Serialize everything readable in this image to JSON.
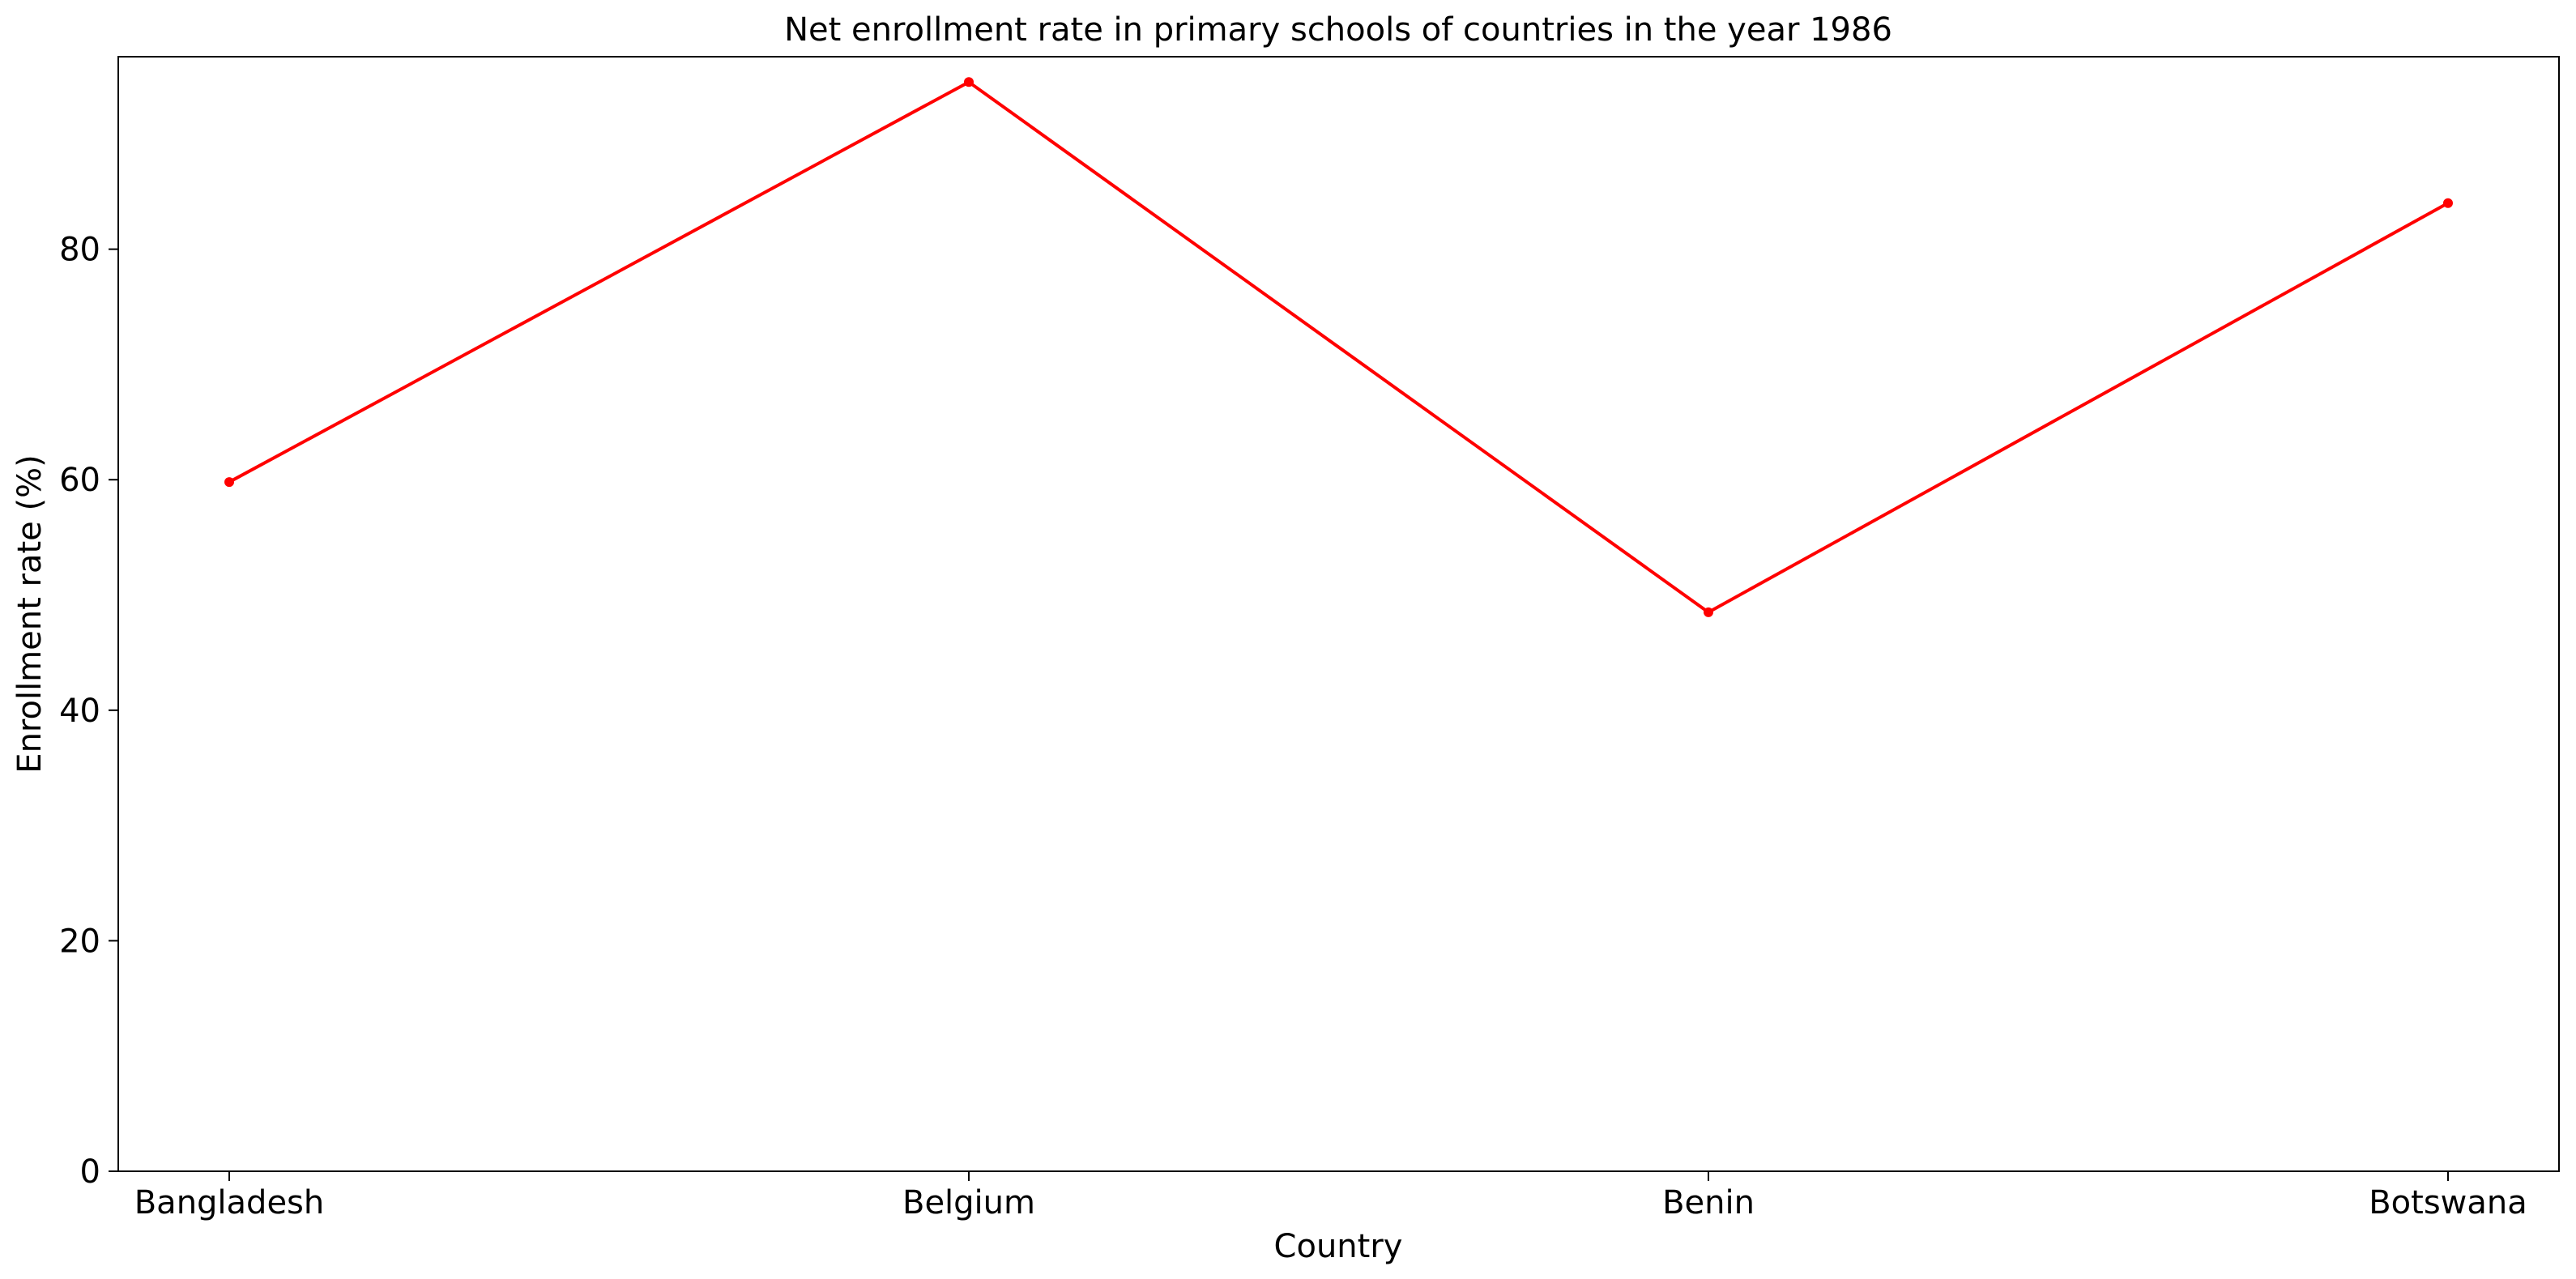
{
  "chart_data": {
    "type": "line",
    "title": "Net enrollment rate in primary schools of countries in the year 1986",
    "xlabel": "Country",
    "ylabel": "Enrollment rate (%)",
    "categories": [
      "Bangladesh",
      "Belgium",
      "Benin",
      "Botswana"
    ],
    "series": [
      {
        "values": [
          59.8,
          94.5,
          48.5,
          84.0
        ],
        "color": "#ff0000"
      }
    ],
    "ylim": [
      0,
      96.7
    ],
    "yticks": [
      0,
      20,
      40,
      60,
      80
    ],
    "grid": false
  }
}
